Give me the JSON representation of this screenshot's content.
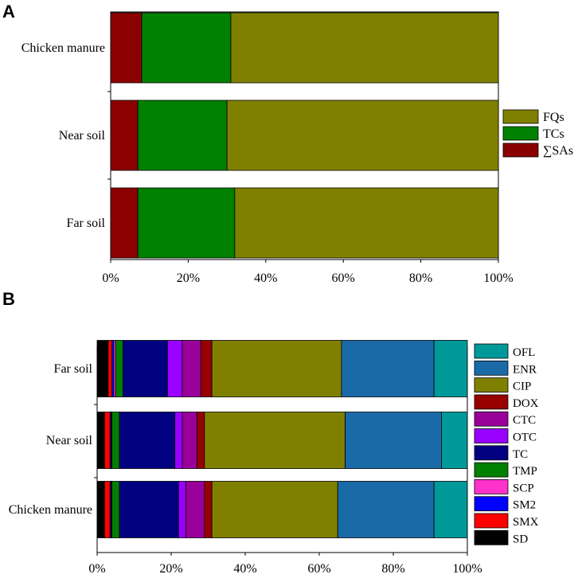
{
  "chart_data": [
    {
      "panel": "A",
      "type": "bar",
      "orientation": "horizontal",
      "stacked": true,
      "categories": [
        "Chicken manure",
        "Near soil",
        "Far soil"
      ],
      "series": [
        {
          "name": "∑SAs",
          "color": "#8b0000",
          "values": [
            8,
            7,
            7
          ]
        },
        {
          "name": "TCs",
          "color": "#008000",
          "values": [
            23,
            23,
            25
          ]
        },
        {
          "name": "FQs",
          "color": "#808000",
          "values": [
            69,
            70,
            68
          ]
        }
      ],
      "legend_order": [
        "FQs",
        "TCs",
        "∑SAs"
      ],
      "xlim": [
        0,
        100
      ],
      "xticks": [
        "0%",
        "20%",
        "40%",
        "60%",
        "80%",
        "100%"
      ],
      "legend_position": "right"
    },
    {
      "panel": "B",
      "type": "bar",
      "orientation": "horizontal",
      "stacked": true,
      "categories": [
        "Far soil",
        "Near soil",
        "Chicken manure"
      ],
      "series": [
        {
          "name": "SD",
          "color": "#000000",
          "values": [
            3.0,
            2.0,
            2.0
          ]
        },
        {
          "name": "SMX",
          "color": "#ff0000",
          "values": [
            1.0,
            1.5,
            1.5
          ]
        },
        {
          "name": "SM2",
          "color": "#0000ff",
          "values": [
            0.5,
            0.3,
            0.3
          ]
        },
        {
          "name": "SCP",
          "color": "#ff33cc",
          "values": [
            0.5,
            0.2,
            0.2
          ]
        },
        {
          "name": "TMP",
          "color": "#008000",
          "values": [
            2.0,
            2.0,
            2.0
          ]
        },
        {
          "name": "TC",
          "color": "#000080",
          "values": [
            12.0,
            15.0,
            16.0
          ]
        },
        {
          "name": "OTC",
          "color": "#9900ff",
          "values": [
            4.0,
            2.0,
            2.0
          ]
        },
        {
          "name": "CTC",
          "color": "#990099",
          "values": [
            5.0,
            4.0,
            5.0
          ]
        },
        {
          "name": "DOX",
          "color": "#990000",
          "values": [
            3.0,
            2.0,
            2.0
          ]
        },
        {
          "name": "CIP",
          "color": "#808000",
          "values": [
            35.0,
            38.0,
            34.0
          ]
        },
        {
          "name": "ENR",
          "color": "#1a6aa8",
          "values": [
            25.0,
            26.0,
            26.0
          ]
        },
        {
          "name": "OFL",
          "color": "#009999",
          "values": [
            9.0,
            7.0,
            9.0
          ]
        }
      ],
      "legend_order": [
        "OFL",
        "ENR",
        "CIP",
        "DOX",
        "CTC",
        "OTC",
        "TC",
        "TMP",
        "SCP",
        "SM2",
        "SMX",
        "SD"
      ],
      "xlim": [
        0,
        100
      ],
      "xticks": [
        "0%",
        "20%",
        "40%",
        "60%",
        "80%",
        "100%"
      ],
      "legend_position": "right"
    }
  ]
}
